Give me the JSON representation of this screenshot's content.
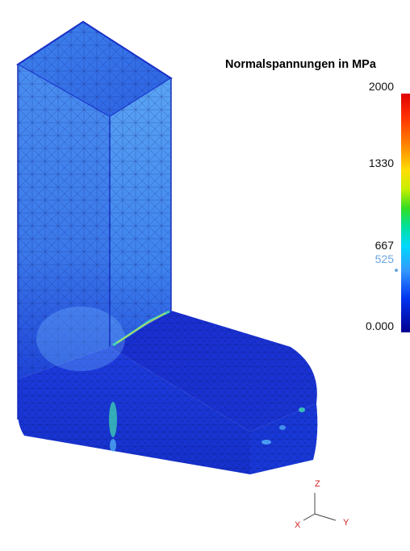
{
  "legend": {
    "title": "Normalspannungen in MPa",
    "ticks": [
      "2000",
      "1330",
      "667",
      "0.000"
    ],
    "marker_value": "525",
    "marker_color": "#6aa6e0"
  },
  "axes": {
    "x": "X",
    "y": "Y",
    "z": "Z",
    "label_color": "#d02020"
  },
  "colors": {
    "mesh_light": "#5a9ef0",
    "mesh_dark": "#1538d0",
    "hotspot": "#40e0b0"
  }
}
